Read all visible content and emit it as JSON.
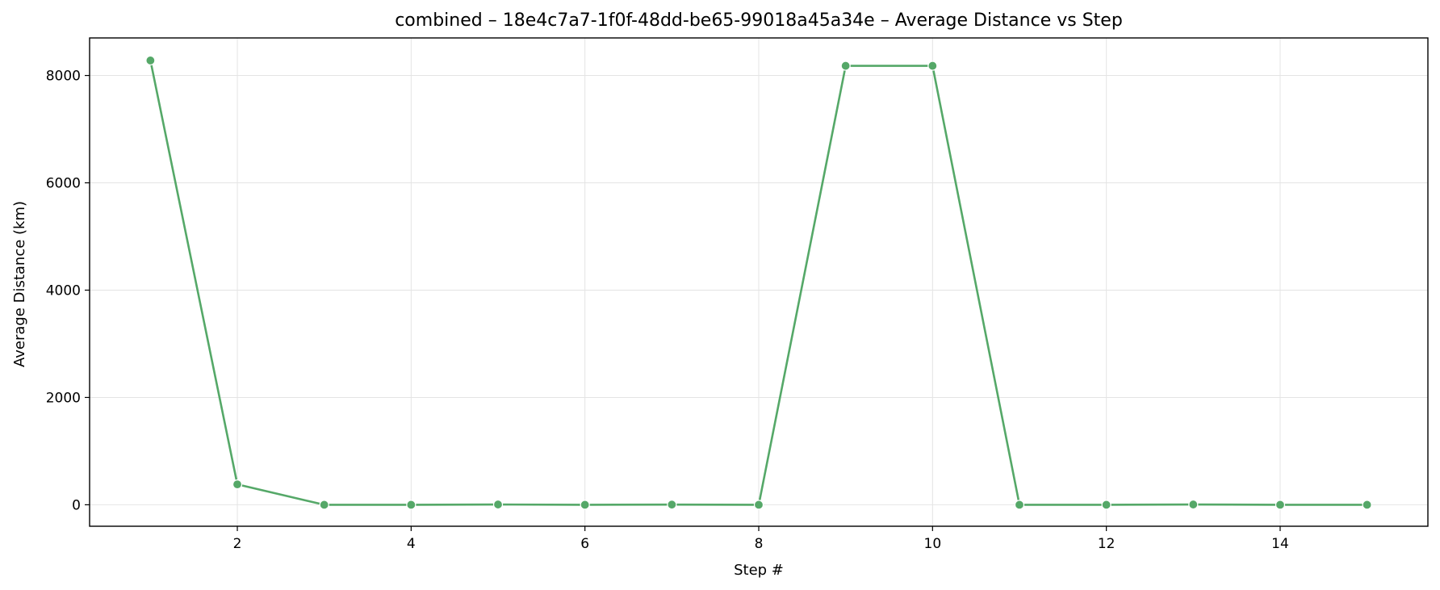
{
  "chart_data": {
    "type": "line",
    "title": "combined – 18e4c7a7-1f0f-48dd-be65-99018a45a34e – Average Distance vs Step",
    "xlabel": "Step #",
    "ylabel": "Average Distance (km)",
    "xlim": [
      0.3,
      15.7
    ],
    "ylim": [
      -400,
      8700
    ],
    "xticks": [
      2,
      4,
      6,
      8,
      10,
      12,
      14
    ],
    "yticks": [
      0,
      2000,
      4000,
      6000,
      8000
    ],
    "grid": true,
    "series": [
      {
        "color": "#55a868",
        "x": [
          1,
          2,
          3,
          4,
          5,
          6,
          7,
          8,
          9,
          10,
          11,
          12,
          13,
          14,
          15
        ],
        "y": [
          8280,
          380,
          0,
          0,
          5,
          0,
          3,
          0,
          8180,
          8180,
          0,
          0,
          5,
          0,
          0
        ]
      }
    ]
  }
}
